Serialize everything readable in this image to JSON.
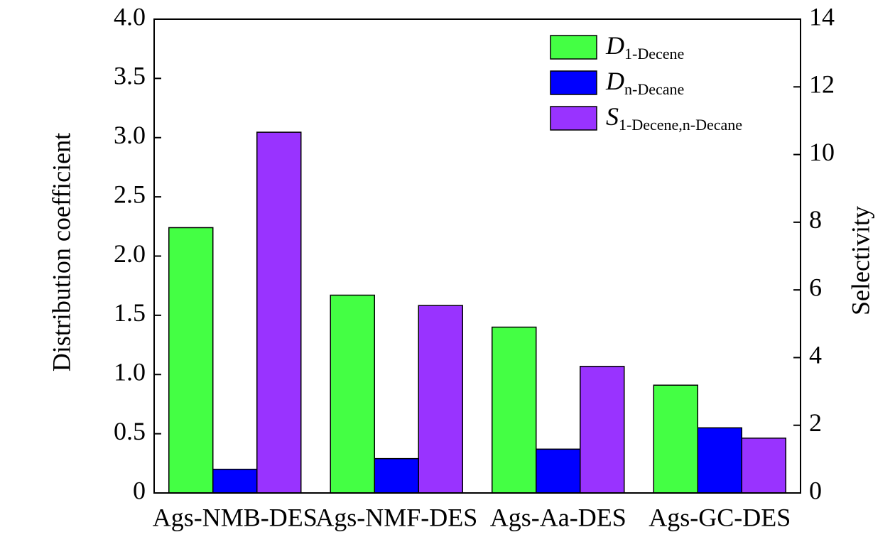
{
  "chart_data": {
    "type": "bar",
    "categories": [
      "Ags-NMB-DES",
      "Ags-NMF-DES",
      "Ags-Aa-DES",
      "Ags-GC-DES"
    ],
    "series": [
      {
        "name": "D",
        "subscript": "1-Decene",
        "color": "#44ff44",
        "values": [
          2.24,
          1.67,
          1.4,
          0.91
        ]
      },
      {
        "name": "D",
        "subscript": "n-Decane",
        "color": "#0000ff",
        "values": [
          0.2,
          0.29,
          0.37,
          0.55
        ]
      },
      {
        "name": "S",
        "subscript": "1-Decene,n-Decane",
        "color": "#9933ff",
        "axis": "y2",
        "values": [
          10.66,
          5.54,
          3.74,
          1.62
        ]
      }
    ],
    "ylabel": "Distribution coefficient",
    "y2label": "Selectivity",
    "ylim": [
      0,
      4
    ],
    "yticks": [
      0,
      0.5,
      {
        "value": 1,
        "label": "1.0"
      },
      1.5,
      {
        "value": 2,
        "label": "2.0"
      },
      2.5,
      {
        "value": 3,
        "label": "3.0"
      },
      3.5,
      {
        "value": 4,
        "label": "4.0"
      }
    ],
    "y2lim": [
      0,
      14
    ],
    "y2ticks": [
      0,
      2,
      4,
      6,
      8,
      10,
      12,
      14
    ],
    "legend": "upper right"
  }
}
